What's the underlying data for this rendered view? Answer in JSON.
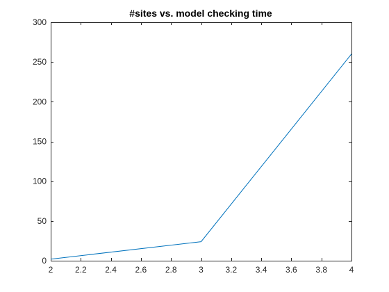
{
  "chart_data": {
    "type": "line",
    "title": "#sites vs. model checking time",
    "xlabel": "",
    "ylabel": "",
    "xlim": [
      2,
      4
    ],
    "ylim": [
      0,
      300
    ],
    "x_ticks": [
      2,
      2.2,
      2.4,
      2.6,
      2.8,
      3,
      3.2,
      3.4,
      3.6,
      3.8,
      4
    ],
    "x_tick_labels": [
      "2",
      "2.2",
      "2.4",
      "2.6",
      "2.8",
      "3",
      "3.2",
      "3.4",
      "3.6",
      "3.8",
      "4"
    ],
    "y_ticks": [
      0,
      50,
      100,
      150,
      200,
      250,
      300
    ],
    "y_tick_labels": [
      "0",
      "50",
      "100",
      "150",
      "200",
      "250",
      "300"
    ],
    "grid": false,
    "series": [
      {
        "color": "#0072bd",
        "x": [
          2,
          3,
          4
        ],
        "y": [
          2,
          24,
          260
        ]
      }
    ]
  }
}
